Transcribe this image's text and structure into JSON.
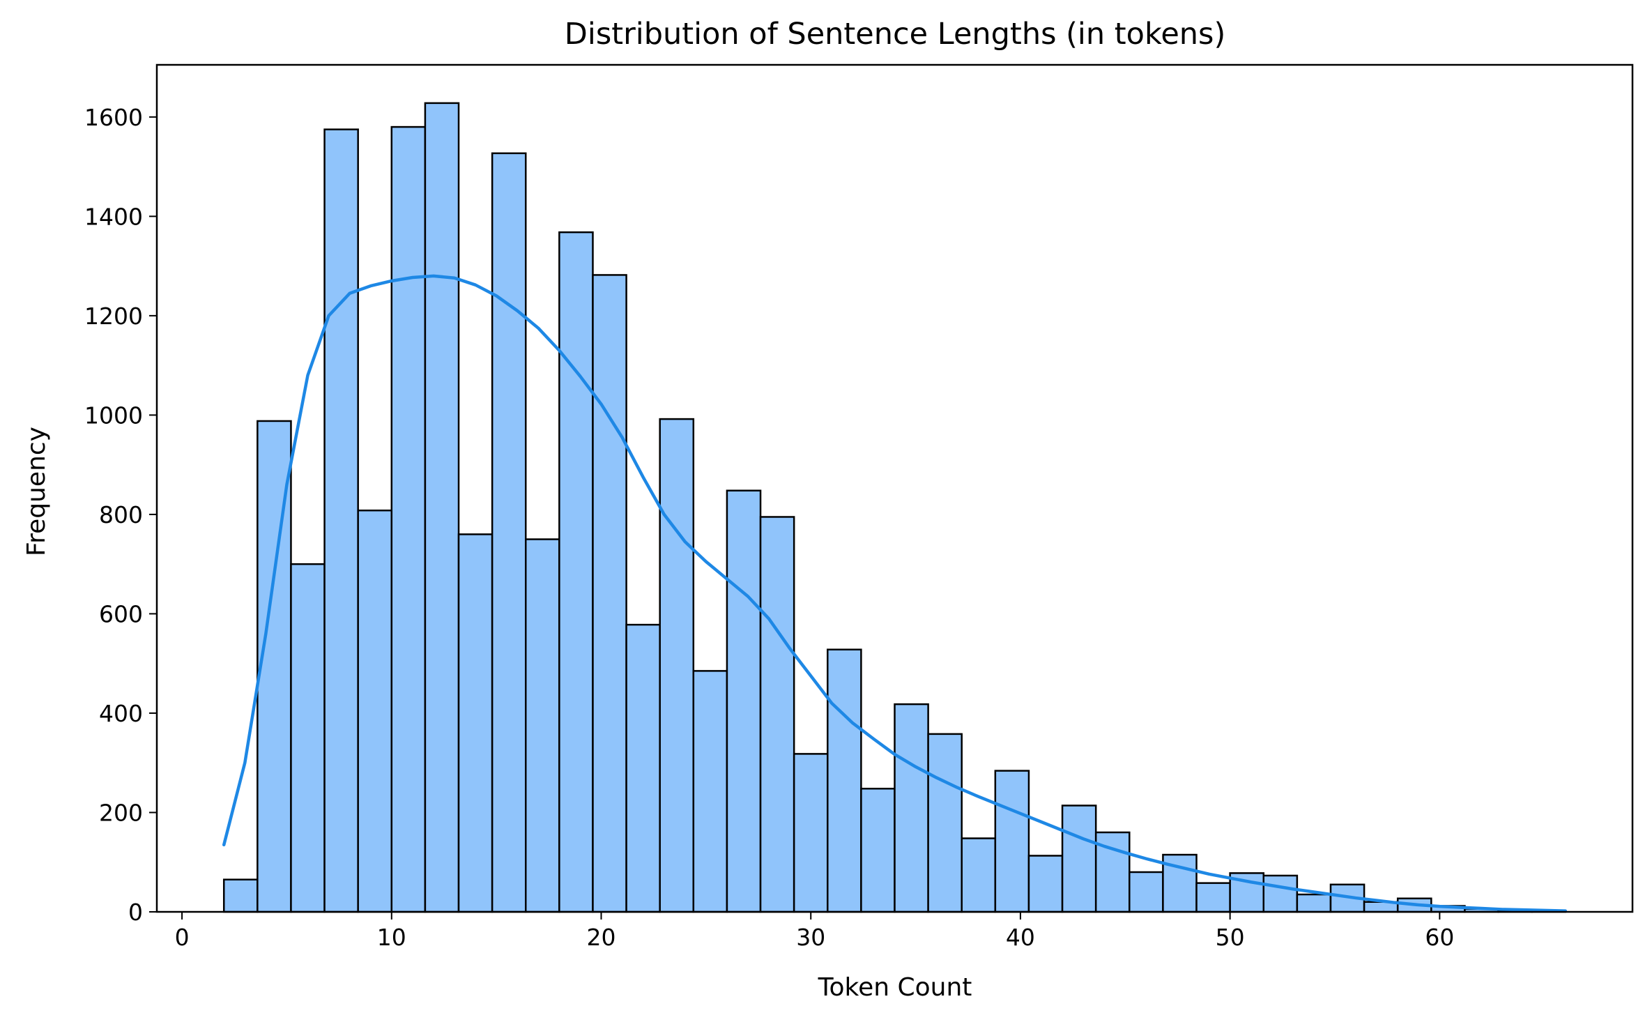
{
  "chart_data": {
    "type": "bar",
    "title": "Distribution of Sentence Lengths (in tokens)",
    "xlabel": "Token Count",
    "ylabel": "Frequency",
    "xlim": [
      -1.2,
      69.2
    ],
    "ylim": [
      0,
      1705
    ],
    "xticks": [
      0,
      10,
      20,
      30,
      40,
      50,
      60
    ],
    "yticks": [
      0,
      200,
      400,
      600,
      800,
      1000,
      1200,
      1400,
      1600
    ],
    "grid": false,
    "legend": "none",
    "bar_color": "#90c4fb",
    "edge_color": "#000000",
    "kde_color": "#1e88e5",
    "bin_edges": [
      2.0,
      3.6,
      5.2,
      6.8,
      8.4,
      10.0,
      11.6,
      13.2,
      14.8,
      16.4,
      18.0,
      19.6,
      21.2,
      22.8,
      24.4,
      26.0,
      27.6,
      29.2,
      30.8,
      32.4,
      34.0,
      35.6,
      37.2,
      38.8,
      40.4,
      42.0,
      43.6,
      45.2,
      46.8,
      48.4,
      50.0,
      51.6,
      53.2,
      54.8,
      56.4,
      58.0,
      59.6,
      61.2,
      62.8,
      64.4,
      66.0
    ],
    "values": [
      65,
      988,
      700,
      1575,
      808,
      1580,
      1628,
      760,
      1527,
      750,
      1368,
      1282,
      578,
      992,
      485,
      848,
      795,
      318,
      528,
      248,
      418,
      358,
      148,
      284,
      113,
      214,
      160,
      80,
      115,
      58,
      78,
      73,
      35,
      55,
      20,
      27,
      12,
      6,
      3,
      1
    ],
    "kde": {
      "x": [
        2,
        3,
        4,
        5,
        6,
        7,
        8,
        9,
        10,
        11,
        12,
        13,
        14,
        15,
        16,
        17,
        18,
        19,
        20,
        21,
        22,
        23,
        24,
        25,
        26,
        27,
        28,
        29,
        30,
        31,
        32,
        33,
        34,
        35,
        36,
        37,
        38,
        39,
        40,
        41,
        42,
        43,
        44,
        45,
        46,
        47,
        48,
        49,
        50,
        51,
        52,
        53,
        54,
        55,
        56,
        57,
        58,
        59,
        60,
        61,
        62,
        63,
        64,
        65,
        66
      ],
      "y": [
        135,
        300,
        560,
        860,
        1080,
        1200,
        1245,
        1260,
        1270,
        1277,
        1280,
        1276,
        1262,
        1240,
        1210,
        1175,
        1130,
        1078,
        1022,
        955,
        875,
        800,
        745,
        705,
        670,
        635,
        590,
        530,
        475,
        420,
        380,
        348,
        317,
        292,
        270,
        250,
        232,
        215,
        198,
        181,
        164,
        147,
        132,
        119,
        107,
        96,
        86,
        76,
        68,
        60,
        53,
        46,
        40,
        34,
        28,
        23,
        18,
        14,
        11,
        9,
        7,
        5,
        4,
        3,
        2
      ]
    }
  }
}
